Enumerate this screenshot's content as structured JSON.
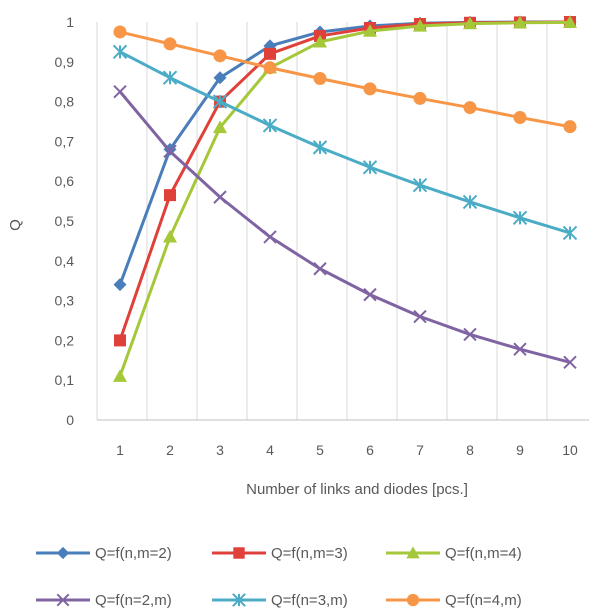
{
  "chart_data": {
    "type": "line",
    "title": "",
    "xlabel": "Number of links and diodes [pcs.]",
    "ylabel": "Q",
    "x": [
      1,
      2,
      3,
      4,
      5,
      6,
      7,
      8,
      9,
      10
    ],
    "x_tick_labels": [
      "1",
      "2",
      "3",
      "4",
      "5",
      "6",
      "7",
      "8",
      "9",
      "10"
    ],
    "ylim": [
      0,
      1
    ],
    "y_ticks": [
      0,
      0.1,
      0.2,
      0.3,
      0.4,
      0.5,
      0.6,
      0.7,
      0.8,
      0.9,
      1
    ],
    "y_tick_labels": [
      "0",
      "0,1",
      "0,2",
      "0,3",
      "0,4",
      "0,5",
      "0,6",
      "0,7",
      "0,8",
      "0,9",
      "1"
    ],
    "grid": "vertical",
    "legend_position": "bottom",
    "series": [
      {
        "name": "Q=f(n,m=2)",
        "color": "#4a7ebb",
        "marker": "diamond",
        "values": [
          0.34,
          0.68,
          0.86,
          0.94,
          0.975,
          0.99,
          0.997,
          0.999,
          1.0,
          1.0
        ]
      },
      {
        "name": "Q=f(n,m=3)",
        "color": "#e0403a",
        "marker": "square",
        "values": [
          0.2,
          0.565,
          0.8,
          0.92,
          0.965,
          0.985,
          0.995,
          0.998,
          0.999,
          1.0
        ]
      },
      {
        "name": "Q=f(n,m=4)",
        "color": "#a5c83a",
        "marker": "triangle",
        "values": [
          0.11,
          0.46,
          0.735,
          0.885,
          0.95,
          0.977,
          0.99,
          0.996,
          0.998,
          0.999
        ]
      },
      {
        "name": "Q=f(n=2,m)",
        "color": "#8064a2",
        "marker": "x",
        "values": [
          0.825,
          0.675,
          0.56,
          0.46,
          0.38,
          0.315,
          0.26,
          0.215,
          0.178,
          0.145
        ]
      },
      {
        "name": "Q=f(n=3,m)",
        "color": "#4bacc6",
        "marker": "star",
        "values": [
          0.925,
          0.86,
          0.8,
          0.74,
          0.685,
          0.635,
          0.59,
          0.548,
          0.508,
          0.47
        ]
      },
      {
        "name": "Q=f(n=4,m)",
        "color": "#f79646",
        "marker": "circle",
        "values": [
          0.975,
          0.945,
          0.915,
          0.885,
          0.858,
          0.832,
          0.808,
          0.785,
          0.76,
          0.737
        ]
      }
    ]
  }
}
